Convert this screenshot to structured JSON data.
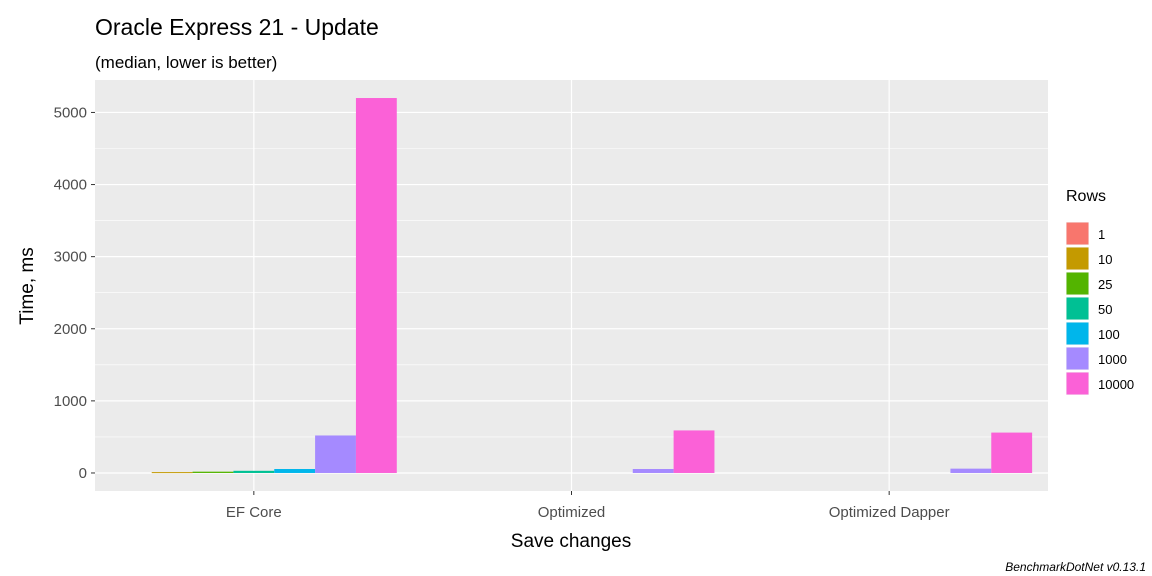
{
  "chart_data": {
    "type": "bar",
    "title": "Oracle Express 21 - Update",
    "subtitle": "(median, lower is better)",
    "xlabel": "Save changes",
    "ylabel": "Time, ms",
    "caption": "BenchmarkDotNet v0.13.1",
    "categories": [
      "EF Core",
      "Optimized",
      "Optimized Dapper"
    ],
    "ylim": [
      -250,
      5450
    ],
    "yticks": [
      0,
      1000,
      2000,
      3000,
      4000,
      5000
    ],
    "legend_title": "Rows",
    "legend_position": "right",
    "grid": true,
    "series": [
      {
        "name": "1",
        "color": "#F8766D",
        "values": [
          null,
          null,
          null
        ]
      },
      {
        "name": "10",
        "color": "#C49A00",
        "values": [
          12,
          null,
          null
        ]
      },
      {
        "name": "25",
        "color": "#53B400",
        "values": [
          18,
          null,
          null
        ]
      },
      {
        "name": "50",
        "color": "#00C094",
        "values": [
          30,
          null,
          null
        ]
      },
      {
        "name": "100",
        "color": "#00B6EB",
        "values": [
          55,
          null,
          null
        ]
      },
      {
        "name": "1000",
        "color": "#A58AFF",
        "values": [
          520,
          55,
          60
        ]
      },
      {
        "name": "10000",
        "color": "#FB61D7",
        "values": [
          5200,
          590,
          560
        ]
      }
    ]
  }
}
